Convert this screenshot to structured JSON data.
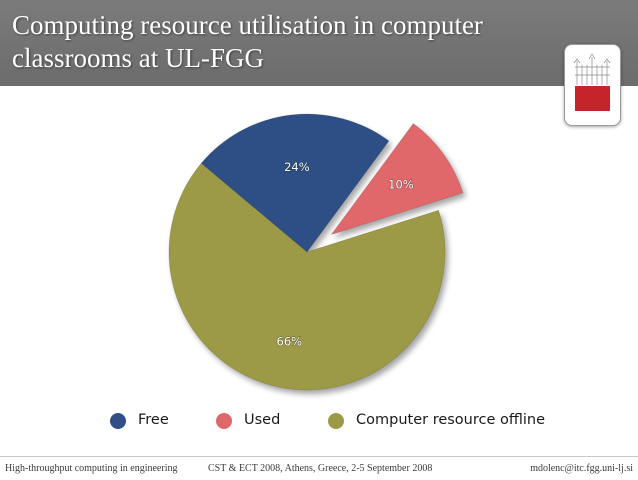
{
  "slide": {
    "title": "Computing resource utilisation in computer classrooms at UL-FGG",
    "logo_icon": "university-building-logo-icon"
  },
  "chart_data": {
    "type": "pie",
    "title": "",
    "exploded": [
      "Used"
    ],
    "slices": [
      {
        "name": "Free",
        "value": 24,
        "label": "24%",
        "color": "#2f4f86"
      },
      {
        "name": "Used",
        "value": 10,
        "label": "10%",
        "color": "#e0686a"
      },
      {
        "name": "Computer resource offline",
        "value": 66,
        "label": "66%",
        "color": "#9c9a46"
      }
    ],
    "legend_position": "bottom"
  },
  "footer": {
    "left": "High-throughput computing in engineering",
    "center": "CST & ECT 2008,  Athens, Greece, 2-5 September 2008",
    "right": "mdolenc@itc.fgg.uni-lj.si"
  }
}
